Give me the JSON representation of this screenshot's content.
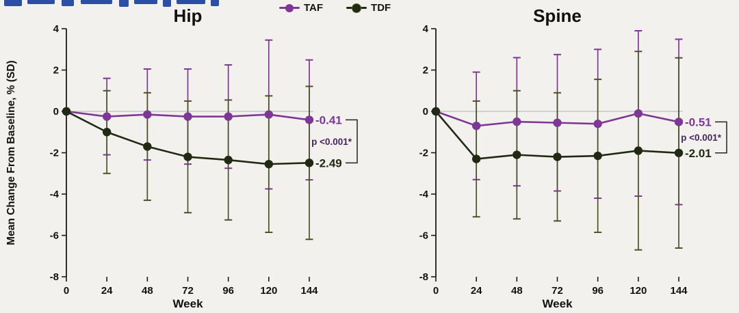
{
  "page": {
    "background": "#f2f1ed"
  },
  "clipped_heading": {
    "color": "#2b4fa6"
  },
  "legend": {
    "items": [
      {
        "label": "TAF",
        "color": "#7e3794"
      },
      {
        "label": "TDF",
        "color": "#202a12"
      }
    ]
  },
  "chart_data": [
    {
      "type": "line",
      "title": "Hip",
      "xlabel": "Week",
      "ylabel": "Mean Change From Baseline, % (SD)",
      "x": [
        0,
        24,
        48,
        72,
        96,
        120,
        144
      ],
      "ylim": [
        -8,
        4
      ],
      "yticks": [
        4,
        2,
        0,
        -2,
        -4,
        -6,
        -8
      ],
      "grid": "zero-line-only",
      "legend_position": "top-center",
      "p_value": "p <0.001*",
      "series": [
        {
          "name": "TAF",
          "color": "#7e3794",
          "error_color": "#7e3794",
          "values": [
            0,
            -0.25,
            -0.15,
            -0.25,
            -0.25,
            -0.15,
            -0.41
          ],
          "sd": [
            0,
            1.85,
            2.2,
            2.3,
            2.5,
            3.6,
            2.9
          ],
          "end_label": "-0.41"
        },
        {
          "name": "TDF",
          "color": "#202a12",
          "error_color": "#4a5226",
          "values": [
            0,
            -1.0,
            -1.7,
            -2.2,
            -2.35,
            -2.55,
            -2.49
          ],
          "sd": [
            0,
            2.0,
            2.6,
            2.7,
            2.9,
            3.3,
            3.7
          ],
          "end_label": "-2.49"
        }
      ]
    },
    {
      "type": "line",
      "title": "Spine",
      "xlabel": "Week",
      "ylabel": "",
      "x": [
        0,
        24,
        48,
        72,
        96,
        120,
        144
      ],
      "ylim": [
        -8,
        4
      ],
      "yticks": [
        4,
        2,
        0,
        -2,
        -4,
        -6,
        -8
      ],
      "grid": "zero-line-only",
      "legend_position": "top-center",
      "p_value": "p <0.001*",
      "series": [
        {
          "name": "TAF",
          "color": "#7e3794",
          "error_color": "#7e3794",
          "values": [
            0,
            -0.7,
            -0.5,
            -0.55,
            -0.6,
            -0.1,
            -0.51
          ],
          "sd": [
            0,
            2.6,
            3.1,
            3.3,
            3.6,
            4.0,
            4.0
          ],
          "end_label": "-0.51"
        },
        {
          "name": "TDF",
          "color": "#202a12",
          "error_color": "#4a5226",
          "values": [
            0,
            -2.3,
            -2.1,
            -2.2,
            -2.15,
            -1.9,
            -2.01
          ],
          "sd": [
            0,
            2.8,
            3.1,
            3.1,
            3.7,
            4.8,
            4.6
          ],
          "end_label": "-2.01"
        }
      ]
    }
  ],
  "p_value_color": "#46245e",
  "axis_color": "#1a1a1a",
  "zero_line_color": "#b0aeaa"
}
